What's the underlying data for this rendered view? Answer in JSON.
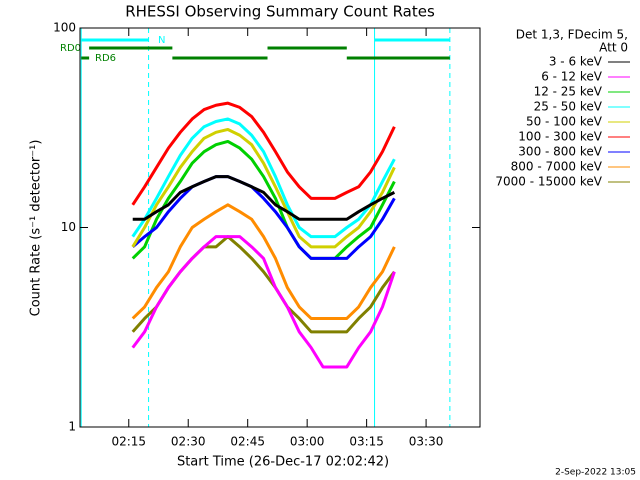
{
  "chart_data": {
    "type": "line",
    "title": "RHESSI Observing Summary Count Rates",
    "xlabel": "Start Time (26-Dec-17 02:02:42)",
    "ylabel": "Count Rate (s⁻¹ detector⁻¹)",
    "footer": "2-Sep-2022 13:05",
    "legend_title": [
      "Det 1,3, FDecim 5,",
      "Att 0"
    ],
    "log_y": true,
    "xlim": [
      "02:02:42",
      "03:43:36"
    ],
    "xticks": [
      "02:15",
      "02:30",
      "02:45",
      "03:00",
      "03:15",
      "03:30"
    ],
    "ylim": [
      1,
      100
    ],
    "yticks": [
      1,
      10,
      100
    ],
    "x": [
      "02:16",
      "02:19",
      "02:22",
      "02:25",
      "02:28",
      "02:31",
      "02:34",
      "02:37",
      "02:40",
      "02:43",
      "02:46",
      "02:49",
      "02:52",
      "02:55",
      "02:58",
      "03:01",
      "03:04",
      "03:07",
      "03:10",
      "03:13",
      "03:16",
      "03:19",
      "03:22"
    ],
    "series": [
      {
        "name": "3 - 6 keV",
        "color": "#000000",
        "values": [
          11,
          11,
          12,
          13,
          15,
          16,
          17,
          18,
          18,
          17,
          16,
          15,
          13,
          12,
          11,
          11,
          11,
          11,
          11,
          12,
          13,
          14,
          15
        ]
      },
      {
        "name": "6 - 12 keV",
        "color": "#ff00ff",
        "values": [
          2.5,
          3,
          4,
          5,
          6,
          7,
          8,
          9,
          9,
          9,
          8,
          7,
          5,
          4,
          3,
          2.5,
          2,
          2,
          2,
          2.5,
          3,
          4,
          6
        ]
      },
      {
        "name": "12 - 25 keV",
        "color": "#00d000",
        "values": [
          7,
          8,
          11,
          14,
          17,
          21,
          24,
          26,
          27,
          25,
          22,
          18,
          14,
          10,
          8,
          7,
          7,
          7,
          8,
          9,
          10,
          13,
          17
        ]
      },
      {
        "name": "25 - 50 keV",
        "color": "#00ffff",
        "values": [
          9,
          11,
          14,
          18,
          23,
          28,
          32,
          34,
          35,
          33,
          29,
          24,
          18,
          13,
          10,
          9,
          9,
          9,
          10,
          11,
          13,
          17,
          22
        ]
      },
      {
        "name": "50 - 100 keV",
        "color": "#d0d000",
        "values": [
          8,
          10,
          13,
          16,
          20,
          24,
          28,
          30,
          31,
          29,
          26,
          21,
          16,
          12,
          9,
          8,
          8,
          8,
          9,
          10,
          12,
          15,
          20
        ]
      },
      {
        "name": "100 - 300 keV",
        "color": "#ff0000",
        "values": [
          13,
          16,
          20,
          25,
          30,
          35,
          39,
          41,
          42,
          40,
          36,
          30,
          24,
          19,
          16,
          14,
          14,
          14,
          15,
          16,
          19,
          24,
          32
        ]
      },
      {
        "name": "300 - 800 keV",
        "color": "#0000ff",
        "values": [
          8,
          9,
          10,
          12,
          14,
          16,
          17,
          18,
          18,
          17,
          16,
          14,
          12,
          10,
          8,
          7,
          7,
          7,
          7,
          8,
          9,
          11,
          14
        ]
      },
      {
        "name": "800 - 7000 keV",
        "color": "#ff8c00",
        "values": [
          3.5,
          4,
          5,
          6,
          8,
          10,
          11,
          12,
          13,
          12,
          11,
          9,
          7,
          5,
          4,
          3.5,
          3.5,
          3.5,
          3.5,
          4,
          5,
          6,
          8
        ]
      },
      {
        "name": "7000 - 15000 keV",
        "color": "#808000",
        "values": [
          3,
          3.5,
          4,
          5,
          6,
          7,
          8,
          8,
          9,
          8,
          7,
          6,
          5,
          4,
          3.5,
          3,
          3,
          3,
          3,
          3.5,
          4,
          5,
          6
        ]
      }
    ],
    "flags": [
      {
        "name": "N",
        "color": "#00ffff",
        "segments": [
          [
            "02:03",
            "02:20"
          ],
          [
            "03:17",
            "03:36"
          ]
        ]
      },
      {
        "name": "RD0",
        "color": "#008000",
        "segments": [
          [
            "02:05",
            "02:26"
          ],
          [
            "02:50",
            "03:10"
          ]
        ]
      },
      {
        "name": "RD6",
        "color": "#008000",
        "segments": [
          [
            "02:03",
            "02:05"
          ],
          [
            "02:26",
            "02:50"
          ],
          [
            "03:10",
            "03:36"
          ]
        ]
      }
    ],
    "vlines": [
      {
        "x": "02:03",
        "color": "#00ffff",
        "dashed": false
      },
      {
        "x": "02:20",
        "color": "#00ffff",
        "dashed": true
      },
      {
        "x": "03:17",
        "color": "#00ffff",
        "dashed": false
      },
      {
        "x": "03:36",
        "color": "#00ffff",
        "dashed": true
      }
    ]
  }
}
